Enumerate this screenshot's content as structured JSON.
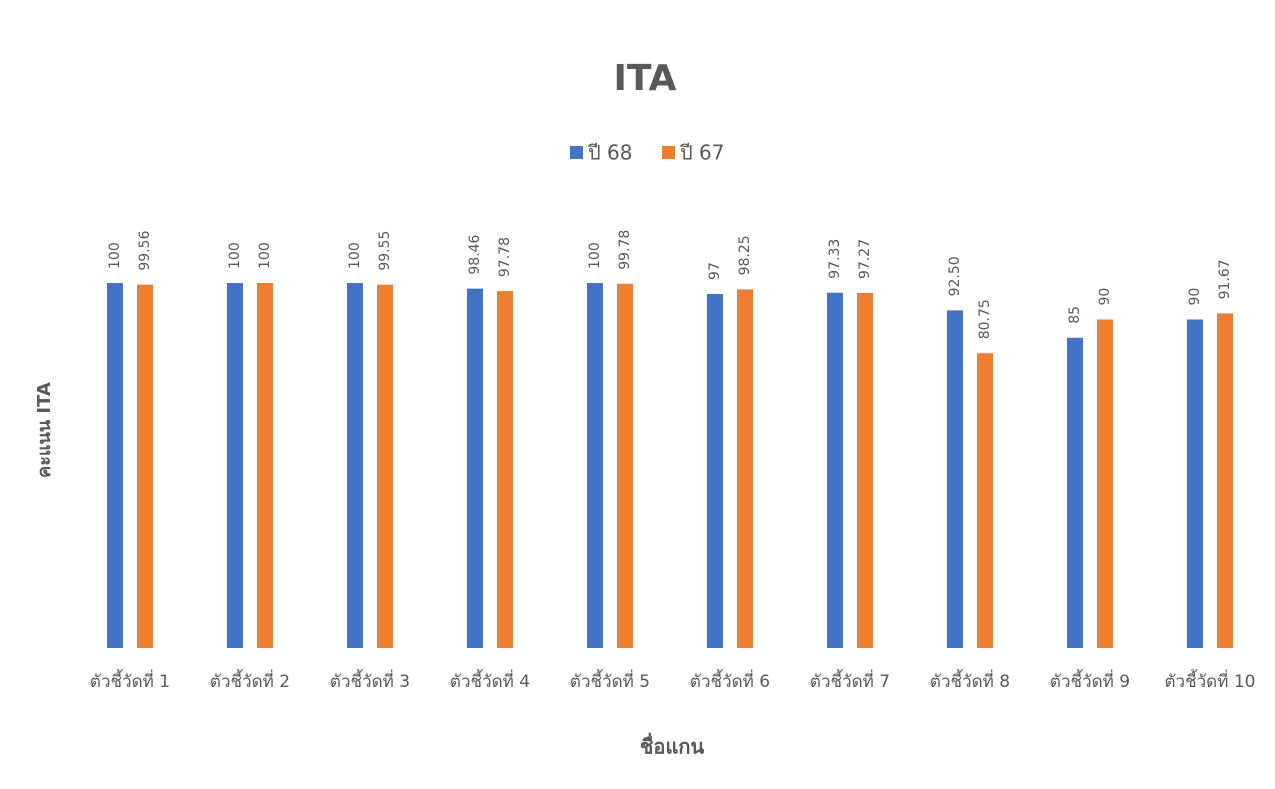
{
  "chart_data": {
    "type": "bar",
    "title": "ITA",
    "y_axis_label": "คะแนน ITA",
    "x_axis_label": "ชื่อแกน",
    "categories": [
      "ตัวชี้วัดที่ 1",
      "ตัวชี้วัดที่ 2",
      "ตัวชี้วัดที่ 3",
      "ตัวชี้วัดที่ 4",
      "ตัวชี้วัดที่ 5",
      "ตัวชี้วัดที่ 6",
      "ตัวชี้วัดที่ 7",
      "ตัวชี้วัดที่ 8",
      "ตัวชี้วัดที่ 9",
      "ตัวชี้วัดที่ 10"
    ],
    "series": [
      {
        "name": "ปี 68",
        "color": "#4472c4",
        "values": [
          100,
          100,
          100,
          98.46,
          100,
          97,
          97.33,
          92.5,
          85,
          90
        ],
        "value_labels": [
          "100",
          "100",
          "100",
          "98.46",
          "100",
          "97",
          "97.33",
          "92.50",
          "85",
          "90"
        ]
      },
      {
        "name": "ปี 67",
        "color": "#ed7d31",
        "values": [
          99.56,
          100,
          99.55,
          97.78,
          99.78,
          98.25,
          97.27,
          80.75,
          90,
          91.67
        ],
        "value_labels": [
          "99.56",
          "100",
          "99.55",
          "97.78",
          "99.78",
          "98.25",
          "97.27",
          "80.75",
          "90",
          "91.67"
        ]
      }
    ],
    "ylim": [
      0,
      100
    ],
    "legend": "top",
    "grid": false
  }
}
